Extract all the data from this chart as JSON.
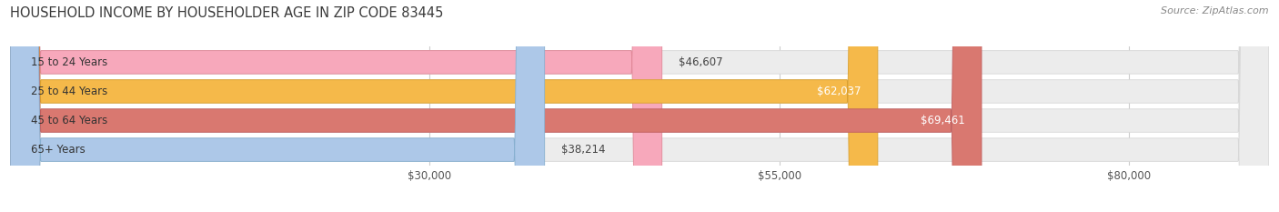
{
  "title": "HOUSEHOLD INCOME BY HOUSEHOLDER AGE IN ZIP CODE 83445",
  "source": "Source: ZipAtlas.com",
  "categories": [
    "15 to 24 Years",
    "25 to 44 Years",
    "45 to 64 Years",
    "65+ Years"
  ],
  "values": [
    46607,
    62037,
    69461,
    38214
  ],
  "bar_colors": [
    "#f7a8bb",
    "#f5b94a",
    "#d97870",
    "#adc8e8"
  ],
  "bar_edge_colors": [
    "#e08898",
    "#d9a030",
    "#c06060",
    "#88b0d0"
  ],
  "label_colors_inside": [
    false,
    true,
    true,
    false
  ],
  "x_ticks": [
    30000,
    55000,
    80000
  ],
  "x_tick_labels": [
    "$30,000",
    "$55,000",
    "$80,000"
  ],
  "xmin": 0,
  "xmax": 90000,
  "background_color": "#ffffff",
  "bar_bg_color": "#ececec",
  "bar_bg_edge_color": "#d8d8d8",
  "title_fontsize": 10.5,
  "source_fontsize": 8,
  "label_fontsize": 8.5,
  "tick_fontsize": 8.5,
  "category_fontsize": 8.5,
  "grid_color": "#cccccc"
}
